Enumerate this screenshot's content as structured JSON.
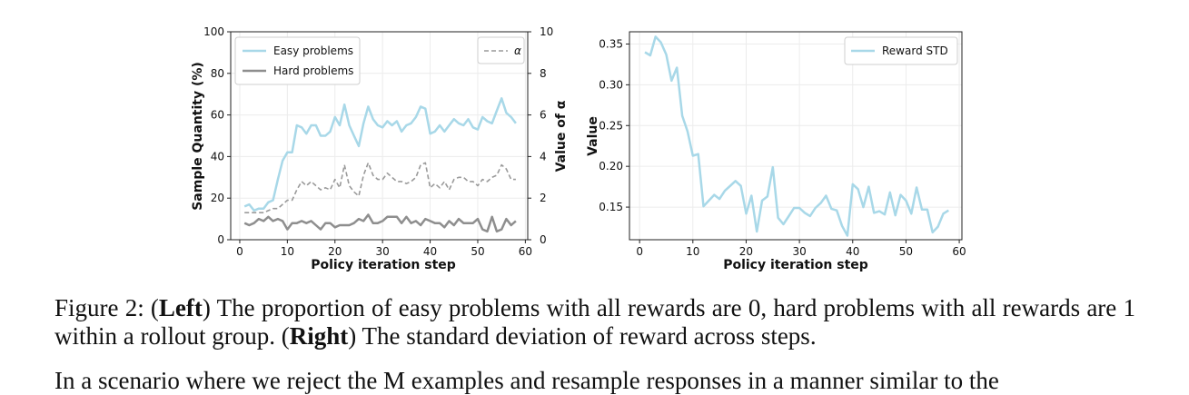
{
  "chart_data": [
    {
      "type": "line",
      "xlabel": "Policy iteration step",
      "ylabel": "Sample Quantity (%)",
      "y2label": "Value of α",
      "xlim": [
        -1.9,
        60.5
      ],
      "ylim": [
        0,
        100
      ],
      "y2lim": [
        0,
        10
      ],
      "xticks": [
        0,
        10,
        20,
        30,
        40,
        50,
        60
      ],
      "yticks": [
        0,
        20,
        40,
        60,
        80,
        100
      ],
      "y2ticks": [
        0,
        2,
        4,
        6,
        8,
        10
      ],
      "grid": true,
      "legend_left": "top-left",
      "legend_right": "top-right",
      "x": [
        1,
        2,
        3,
        4,
        5,
        6,
        7,
        8,
        9,
        10,
        11,
        12,
        13,
        14,
        15,
        16,
        17,
        18,
        19,
        20,
        21,
        22,
        23,
        24,
        25,
        26,
        27,
        28,
        29,
        30,
        31,
        32,
        33,
        34,
        35,
        36,
        37,
        38,
        39,
        40,
        41,
        42,
        43,
        44,
        45,
        46,
        47,
        48,
        49,
        50,
        51,
        52,
        53,
        54,
        55,
        56,
        57,
        58
      ],
      "series": [
        {
          "name": "Easy problems",
          "axis": "left",
          "color": "#a8d8e8",
          "style": "solid",
          "values": [
            16,
            17,
            14,
            15,
            15,
            18,
            19,
            29,
            38,
            42,
            42,
            55,
            54,
            51,
            55,
            55,
            50,
            50,
            52,
            59,
            55,
            65,
            55,
            50,
            45,
            56,
            64,
            58,
            55,
            54,
            57,
            55,
            57,
            52,
            55,
            56,
            59,
            64,
            63,
            51,
            52,
            55,
            52,
            55,
            58,
            56,
            55,
            58,
            54,
            53,
            59,
            57,
            56,
            62,
            68,
            61,
            59,
            56
          ]
        },
        {
          "name": "Hard problems",
          "axis": "left",
          "color": "#8e8e8e",
          "style": "solid",
          "values": [
            8,
            7,
            8,
            10,
            9,
            11,
            9,
            10,
            9,
            5,
            8,
            8,
            9,
            8,
            9,
            7,
            5,
            8,
            8,
            6,
            7,
            7,
            7,
            8,
            10,
            9,
            12,
            8,
            8,
            9,
            11,
            11,
            11,
            8,
            11,
            8,
            9,
            7,
            10,
            9,
            8,
            8,
            6,
            9,
            7,
            10,
            8,
            8,
            8,
            10,
            5,
            4,
            11,
            4,
            5,
            10,
            7,
            9
          ]
        },
        {
          "name": "α",
          "axis": "right",
          "color": "#9a9a9a",
          "style": "dashed",
          "values": [
            1.3,
            1.3,
            1.3,
            1.3,
            1.3,
            1.4,
            1.5,
            1.5,
            1.7,
            1.9,
            1.9,
            2.4,
            2.8,
            2.6,
            2.8,
            2.6,
            2.4,
            2.5,
            2.4,
            2.9,
            2.5,
            3.6,
            2.6,
            2.3,
            2.1,
            3.1,
            3.7,
            3.1,
            2.9,
            2.9,
            3.2,
            3.0,
            2.8,
            2.8,
            2.7,
            2.8,
            3.0,
            3.6,
            3.7,
            2.5,
            2.7,
            2.5,
            2.8,
            2.4,
            2.9,
            3.0,
            3.0,
            2.8,
            2.8,
            2.6,
            2.9,
            2.8,
            3.0,
            3.1,
            3.6,
            3.4,
            2.9,
            2.9
          ]
        }
      ]
    },
    {
      "type": "line",
      "xlabel": "Policy iteration step",
      "ylabel": "Value",
      "xlim": [
        -1.9,
        60.5
      ],
      "ylim": [
        0.11,
        0.365
      ],
      "xticks": [
        0,
        10,
        20,
        30,
        40,
        50,
        60
      ],
      "yticks": [
        0.15,
        0.2,
        0.25,
        0.3,
        0.35
      ],
      "grid": true,
      "legend": "top-right",
      "x": [
        1,
        2,
        3,
        4,
        5,
        6,
        7,
        8,
        9,
        10,
        11,
        12,
        13,
        14,
        15,
        16,
        17,
        18,
        19,
        20,
        21,
        22,
        23,
        24,
        25,
        26,
        27,
        28,
        29,
        30,
        31,
        32,
        33,
        34,
        35,
        36,
        37,
        38,
        39,
        40,
        41,
        42,
        43,
        44,
        45,
        46,
        47,
        48,
        49,
        50,
        51,
        52,
        53,
        54,
        55,
        56,
        57,
        58
      ],
      "series": [
        {
          "name": "Reward STD",
          "color": "#a8d8e8",
          "style": "solid",
          "values": [
            0.34,
            0.336,
            0.359,
            0.352,
            0.337,
            0.305,
            0.321,
            0.262,
            0.243,
            0.213,
            0.215,
            0.151,
            0.158,
            0.165,
            0.16,
            0.17,
            0.176,
            0.182,
            0.176,
            0.142,
            0.164,
            0.12,
            0.158,
            0.163,
            0.199,
            0.137,
            0.129,
            0.139,
            0.149,
            0.149,
            0.143,
            0.139,
            0.149,
            0.155,
            0.164,
            0.148,
            0.146,
            0.127,
            0.115,
            0.178,
            0.172,
            0.15,
            0.175,
            0.143,
            0.145,
            0.141,
            0.168,
            0.14,
            0.165,
            0.158,
            0.142,
            0.174,
            0.147,
            0.147,
            0.119,
            0.126,
            0.142,
            0.146
          ]
        }
      ]
    }
  ],
  "caption": {
    "prefix": "Figure 2: (",
    "left_bold": "Left",
    "middle": ") The proportion of easy problems with all rewards are 0, hard problems with all rewards are 1 within a rollout group. (",
    "right_bold": "Right",
    "suffix": ") The standard deviation of reward across steps."
  },
  "body_text": "In a scenario where we reject the M examples and resample responses in a manner similar to the"
}
